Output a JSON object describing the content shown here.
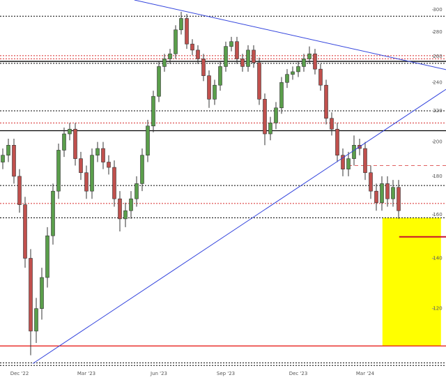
{
  "chart_data": {
    "type": "candlestick",
    "log_scale": true,
    "ylim": [
      100,
      309
    ],
    "yticks": [
      120,
      140,
      160,
      180,
      200,
      220,
      240,
      260,
      280,
      300
    ],
    "xlim": [
      -0.5,
      79.5
    ],
    "up_color": "#5a9e4b",
    "down_color": "#c0504d",
    "categories": [
      null,
      null,
      null,
      "Dec '22",
      null,
      null,
      null,
      null,
      null,
      null,
      null,
      null,
      null,
      null,
      null,
      "Mar '23",
      null,
      null,
      null,
      null,
      null,
      null,
      null,
      null,
      null,
      null,
      null,
      null,
      "Jun '23",
      null,
      null,
      null,
      null,
      null,
      null,
      null,
      null,
      null,
      null,
      null,
      "Sep '23",
      null,
      null,
      null,
      null,
      null,
      null,
      null,
      null,
      null,
      null,
      null,
      null,
      "Dec '23",
      null,
      null,
      null,
      null,
      null,
      null,
      null,
      null,
      null,
      null,
      null,
      "Mar '24",
      null,
      null,
      null,
      null,
      null,
      null
    ],
    "open": [
      188,
      192,
      198,
      180,
      165,
      140,
      112,
      120,
      132,
      150,
      172,
      195,
      205,
      208,
      190,
      182,
      172,
      192,
      196,
      188,
      185,
      168,
      158,
      162,
      168,
      176,
      192,
      210,
      230,
      252,
      258,
      262,
      282,
      292,
      270,
      265,
      258,
      245,
      228,
      238,
      252,
      268,
      272,
      258,
      252,
      265,
      255,
      228,
      205,
      212,
      222,
      240,
      246,
      248,
      252,
      258,
      262,
      250,
      238,
      215,
      208,
      192,
      184,
      190,
      198,
      196,
      182,
      172,
      166,
      176,
      168,
      174
    ],
    "high": [
      196,
      202,
      202,
      184,
      169,
      144,
      124,
      136,
      154,
      176,
      199,
      209,
      212,
      212,
      194,
      186,
      196,
      200,
      200,
      192,
      189,
      172,
      166,
      172,
      180,
      196,
      214,
      234,
      256,
      262,
      266,
      286,
      298,
      296,
      274,
      269,
      262,
      249,
      242,
      256,
      272,
      276,
      276,
      262,
      269,
      269,
      259,
      232,
      216,
      226,
      244,
      250,
      252,
      256,
      262,
      268,
      266,
      254,
      242,
      219,
      212,
      196,
      194,
      204,
      202,
      200,
      186,
      176,
      180,
      180,
      178,
      178
    ],
    "low": [
      184,
      188,
      176,
      161,
      136,
      104,
      108,
      116,
      128,
      146,
      168,
      191,
      201,
      186,
      178,
      168,
      168,
      188,
      184,
      181,
      164,
      152,
      154,
      158,
      164,
      172,
      188,
      206,
      226,
      248,
      254,
      258,
      278,
      266,
      261,
      254,
      241,
      222,
      224,
      234,
      248,
      264,
      254,
      248,
      248,
      251,
      224,
      198,
      201,
      208,
      218,
      236,
      242,
      244,
      248,
      254,
      246,
      234,
      211,
      204,
      188,
      180,
      180,
      186,
      192,
      178,
      168,
      162,
      162,
      164,
      164,
      158
    ],
    "close": [
      192,
      198,
      180,
      165,
      140,
      112,
      120,
      132,
      150,
      172,
      195,
      205,
      208,
      190,
      182,
      172,
      192,
      196,
      188,
      185,
      168,
      158,
      162,
      168,
      176,
      192,
      210,
      230,
      252,
      258,
      262,
      282,
      292,
      270,
      265,
      258,
      245,
      228,
      238,
      252,
      268,
      272,
      258,
      252,
      265,
      255,
      228,
      205,
      212,
      222,
      240,
      246,
      248,
      252,
      258,
      262,
      250,
      238,
      215,
      208,
      192,
      184,
      190,
      198,
      196,
      182,
      172,
      166,
      176,
      168,
      174,
      162
    ],
    "levels": [
      {
        "value": 294,
        "color": "#000000",
        "style": "dotted"
      },
      {
        "value": 260.5,
        "color": "#d62728",
        "style": "dotted"
      },
      {
        "value": 258,
        "color": "#d62728",
        "style": "dotted"
      },
      {
        "value": 256,
        "color": "#000000",
        "style": "solid"
      },
      {
        "value": 254.5,
        "color": "#000000",
        "style": "dotted"
      },
      {
        "value": 220,
        "color": "#000000",
        "style": "dotted"
      },
      {
        "value": 212,
        "color": "#d62728",
        "style": "dotted"
      },
      {
        "value": 207,
        "color": "#000000",
        "style": "solid"
      },
      {
        "value": 186,
        "color": "#e06060",
        "style": "dashed",
        "from": 62
      },
      {
        "value": 175,
        "color": "#000000",
        "style": "dotted"
      },
      {
        "value": 165.6,
        "color": "#d62728",
        "style": "dotted"
      },
      {
        "value": 158.5,
        "color": "#000000",
        "style": "dotted"
      },
      {
        "value": 107,
        "color": "#e8231f",
        "style": "solid"
      },
      {
        "value": 101.6,
        "color": "#000000",
        "style": "dotted"
      },
      {
        "value": 100.8,
        "color": "#000000",
        "style": "dotted"
      }
    ],
    "zone": {
      "x": [
        68.1,
        78.6
      ],
      "y": [
        107,
        158.5
      ],
      "color": "#ffff00"
    },
    "trendlines": [
      {
        "x": [
          23.6,
          79.5
        ],
        "y": [
          309,
          249.6
        ],
        "color": "#3344dd",
        "width": 1
      },
      {
        "x": [
          5.4,
          79.5
        ],
        "y": [
          101.4,
          235
        ],
        "color": "#3344dd",
        "width": 1
      },
      {
        "x": [
          71.1,
          79.5
        ],
        "y": [
          149.5,
          149.5
        ],
        "color": "#c8102e",
        "width": 2
      }
    ]
  }
}
